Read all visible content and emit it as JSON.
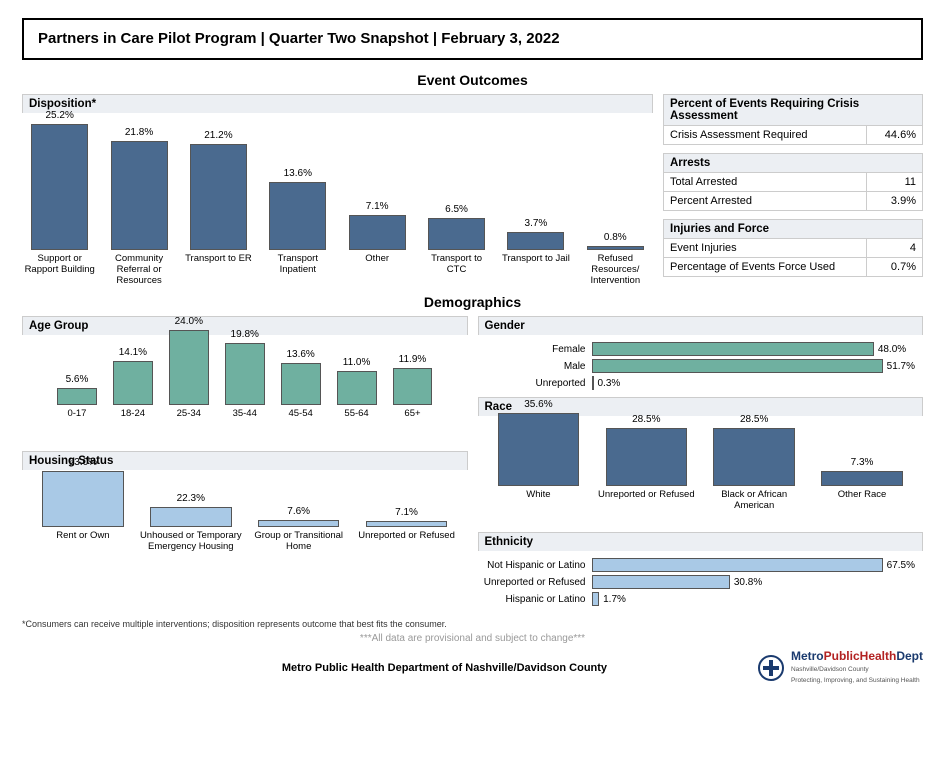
{
  "title": "Partners in Care Pilot Program  |  Quarter Two Snapshot  |  February 3, 2022",
  "sections": {
    "event_outcomes": "Event Outcomes",
    "demographics": "Demographics"
  },
  "disposition": {
    "title": "Disposition*",
    "type": "bar",
    "bar_color": "#4a6a8f",
    "max": 26,
    "items": [
      {
        "label": "Support or Rapport Building",
        "value": 25.2,
        "display": "25.2%"
      },
      {
        "label": "Community Referral or Resources",
        "value": 21.8,
        "display": "21.8%"
      },
      {
        "label": "Transport to ER",
        "value": 21.2,
        "display": "21.2%"
      },
      {
        "label": "Transport Inpatient",
        "value": 13.6,
        "display": "13.6%"
      },
      {
        "label": "Other",
        "value": 7.1,
        "display": "7.1%"
      },
      {
        "label": "Transport to CTC",
        "value": 6.5,
        "display": "6.5%"
      },
      {
        "label": "Transport to Jail",
        "value": 3.7,
        "display": "3.7%"
      },
      {
        "label": "Refused Resources/ Intervention",
        "value": 0.8,
        "display": "0.8%"
      }
    ]
  },
  "crisis": {
    "title": "Percent of Events Requiring Crisis Assessment",
    "rows": [
      {
        "label": "Crisis Assessment Required",
        "value": "44.6%"
      }
    ]
  },
  "arrests": {
    "title": "Arrests",
    "rows": [
      {
        "label": "Total Arrested",
        "value": "11"
      },
      {
        "label": "Percent Arrested",
        "value": "3.9%"
      }
    ]
  },
  "injuries": {
    "title": "Injuries and Force",
    "rows": [
      {
        "label": "Event Injuries",
        "value": "4"
      },
      {
        "label": "Percentage of Events Force Used",
        "value": "0.7%"
      }
    ]
  },
  "age": {
    "title": "Age Group",
    "type": "bar",
    "bar_color": "#6fb0a0",
    "max": 25,
    "items": [
      {
        "label": "0-17",
        "value": 5.6,
        "display": "5.6%"
      },
      {
        "label": "18-24",
        "value": 14.1,
        "display": "14.1%"
      },
      {
        "label": "25-34",
        "value": 24.0,
        "display": "24.0%"
      },
      {
        "label": "35-44",
        "value": 19.8,
        "display": "19.8%"
      },
      {
        "label": "45-54",
        "value": 13.6,
        "display": "13.6%"
      },
      {
        "label": "55-64",
        "value": 11.0,
        "display": "11.0%"
      },
      {
        "label": "65+",
        "value": 11.9,
        "display": "11.9%"
      }
    ]
  },
  "housing": {
    "title": "Housing Status",
    "type": "bar",
    "bar_color": "#a9c9e6",
    "max": 65,
    "items": [
      {
        "label": "Rent or Own",
        "value": 63.0,
        "display": "63.0%"
      },
      {
        "label": "Unhoused or Temporary Emergency Housing",
        "value": 22.3,
        "display": "22.3%"
      },
      {
        "label": "Group or Transitional Home",
        "value": 7.6,
        "display": "7.6%"
      },
      {
        "label": "Unreported or Refused",
        "value": 7.1,
        "display": "7.1%"
      }
    ]
  },
  "gender": {
    "title": "Gender",
    "type": "hbar",
    "bar_color": "#6fb0a0",
    "max": 55,
    "items": [
      {
        "label": "Female",
        "value": 48.0,
        "display": "48.0%"
      },
      {
        "label": "Male",
        "value": 51.7,
        "display": "51.7%"
      },
      {
        "label": "Unreported",
        "value": 0.3,
        "display": "0.3%"
      }
    ]
  },
  "race": {
    "title": "Race",
    "type": "bar",
    "bar_color": "#4a6a8f",
    "max": 38,
    "items": [
      {
        "label": "White",
        "value": 35.6,
        "display": "35.6%"
      },
      {
        "label": "Unreported or Refused",
        "value": 28.5,
        "display": "28.5%"
      },
      {
        "label": "Black or African American",
        "value": 28.5,
        "display": "28.5%"
      },
      {
        "label": "Other Race",
        "value": 7.3,
        "display": "7.3%"
      }
    ]
  },
  "ethnicity": {
    "title": "Ethnicity",
    "type": "hbar",
    "bar_color": "#a9c9e6",
    "max": 72,
    "items": [
      {
        "label": "Not Hispanic or Latino",
        "value": 67.5,
        "display": "67.5%"
      },
      {
        "label": "Unreported or Refused",
        "value": 30.8,
        "display": "30.8%"
      },
      {
        "label": "Hispanic or Latino",
        "value": 1.7,
        "display": "1.7%"
      }
    ]
  },
  "footnote": "*Consumers can receive multiple interventions; disposition represents outcome that best fits the consumer.",
  "provisional": "***All data are provisional and subject to change***",
  "footer_org": "Metro Public Health Department of Nashville/Davidson County",
  "logo": {
    "main": "MetroPublicHealthDept",
    "sub1": "Nashville/Davidson County",
    "sub2": "Protecting, Improving, and Sustaining Health"
  }
}
